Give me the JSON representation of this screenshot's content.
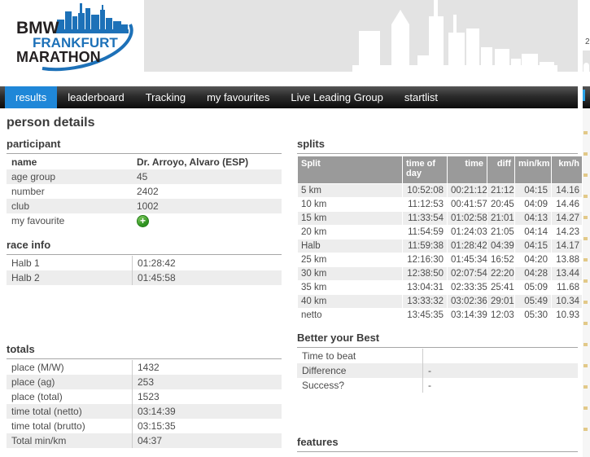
{
  "logo": {
    "brand": "BMW",
    "event": "FRANKFURT",
    "type": "MARATHON"
  },
  "page_title": "person details",
  "nav": {
    "items": [
      {
        "label": "results",
        "active": true
      },
      {
        "label": "leaderboard",
        "active": false
      },
      {
        "label": "Tracking",
        "active": false
      },
      {
        "label": "my favourites",
        "active": false
      },
      {
        "label": "Live Leading Group",
        "active": false
      },
      {
        "label": "startlist",
        "active": false
      }
    ]
  },
  "adjacent_fragment": {
    "text": "2"
  },
  "sections": {
    "participant": {
      "title": "participant",
      "rows": [
        {
          "label": "name",
          "value": "Dr. Arroyo, Alvaro (ESP)",
          "header": true
        },
        {
          "label": "age group",
          "value": "45"
        },
        {
          "label": "number",
          "value": "2402"
        },
        {
          "label": "club",
          "value": "1002"
        },
        {
          "label": "my favourite",
          "value": "",
          "icon": "add-favourite-icon",
          "icon_glyph": "+"
        }
      ]
    },
    "race_info": {
      "title": "race info",
      "rows": [
        {
          "label": "Halb 1",
          "value": "01:28:42"
        },
        {
          "label": "Halb 2",
          "value": "01:45:58"
        }
      ]
    },
    "totals": {
      "title": "totals",
      "rows": [
        {
          "label": "place (M/W)",
          "value": "1432"
        },
        {
          "label": "place (ag)",
          "value": "253"
        },
        {
          "label": "place (total)",
          "value": "1523"
        },
        {
          "label": "time total (netto)",
          "value": "03:14:39"
        },
        {
          "label": "time total (brutto)",
          "value": "03:15:35"
        },
        {
          "label": "Total min/km",
          "value": "04:37"
        }
      ]
    },
    "splits": {
      "title": "splits",
      "columns": [
        "Split",
        "time of day",
        "time",
        "diff",
        "min/km",
        "km/h"
      ],
      "rows": [
        [
          "5 km",
          "10:52:08",
          "00:21:12",
          "21:12",
          "04:15",
          "14.16"
        ],
        [
          "10 km",
          "11:12:53",
          "00:41:57",
          "20:45",
          "04:09",
          "14.46"
        ],
        [
          "15 km",
          "11:33:54",
          "01:02:58",
          "21:01",
          "04:13",
          "14.27"
        ],
        [
          "20 km",
          "11:54:59",
          "01:24:03",
          "21:05",
          "04:14",
          "14.23"
        ],
        [
          "Halb",
          "11:59:38",
          "01:28:42",
          "04:39",
          "04:15",
          "14.17"
        ],
        [
          "25 km",
          "12:16:30",
          "01:45:34",
          "16:52",
          "04:20",
          "13.88"
        ],
        [
          "30 km",
          "12:38:50",
          "02:07:54",
          "22:20",
          "04:28",
          "13.44"
        ],
        [
          "35 km",
          "13:04:31",
          "02:33:35",
          "25:41",
          "05:09",
          "11.68"
        ],
        [
          "40 km",
          "13:33:32",
          "03:02:36",
          "29:01",
          "05:49",
          "10.34"
        ],
        [
          "netto",
          "13:45:35",
          "03:14:39",
          "12:03",
          "05:30",
          "10.93"
        ]
      ]
    },
    "better_your_best": {
      "title": "Better your Best",
      "rows": [
        {
          "label": "Time to beat",
          "value": ""
        },
        {
          "label": "Difference",
          "value": "-"
        },
        {
          "label": "Success?",
          "value": "-"
        }
      ]
    },
    "features": {
      "title": "features"
    }
  },
  "colors": {
    "accent_blue": "#1f87d8",
    "logo_blue": "#1d71b8",
    "table_header_gray": "#9a9a9a",
    "row_stripe": "#ededed",
    "banner_gray": "#e3e3e3",
    "favourite_green": "#2f9321"
  }
}
